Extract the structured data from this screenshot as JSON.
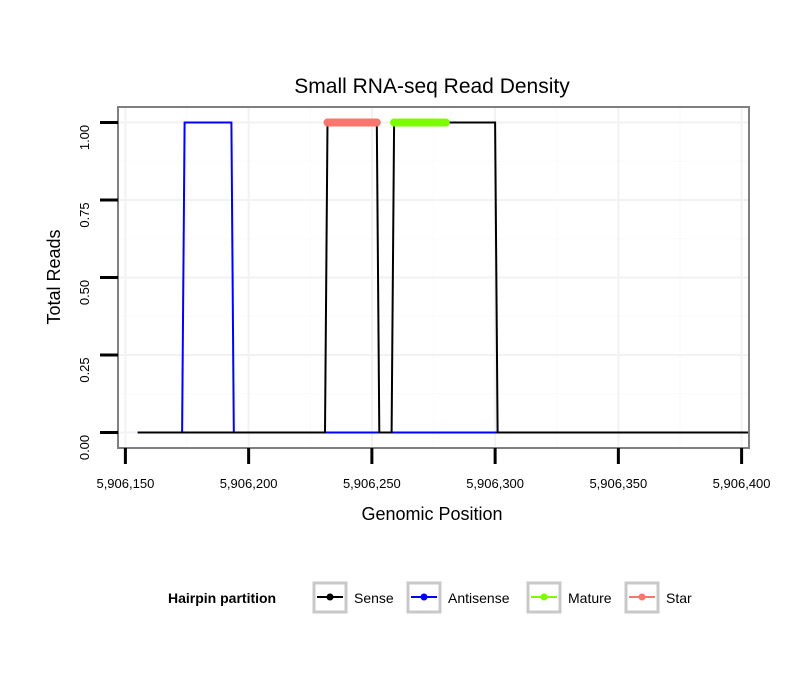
{
  "chart_data": {
    "type": "line",
    "title": "Small RNA-seq Read Density",
    "xlabel": "Genomic Position",
    "ylabel": "Total Reads",
    "xlim": [
      5906147,
      5906403
    ],
    "ylim": [
      -0.05,
      1.05
    ],
    "x_ticks": [
      5906150,
      5906200,
      5906250,
      5906300,
      5906350,
      5906400
    ],
    "x_tick_labels": [
      "5,906,150",
      "5,906,200",
      "5,906,250",
      "5,906,300",
      "5,906,350",
      "5,906,400"
    ],
    "y_ticks": [
      0,
      0.25,
      0.5,
      0.75,
      1
    ],
    "y_tick_labels": [
      "0.00",
      "0.25",
      "0.50",
      "0.75",
      "1.00"
    ],
    "grid": true,
    "legend": {
      "title": "Hairpin partition",
      "position": "bottom",
      "entries": [
        "Sense",
        "Antisense",
        "Mature",
        "Star"
      ]
    },
    "series": [
      {
        "name": "Antisense",
        "color": "#0000ff",
        "x": [
          5906155,
          5906173,
          5906174,
          5906193,
          5906194,
          5906301
        ],
        "y": [
          0,
          0,
          1,
          1,
          0,
          0
        ]
      },
      {
        "name": "Sense",
        "color": "#000000",
        "x": [
          5906155,
          5906231,
          5906232,
          5906252,
          5906253,
          5906258,
          5906259,
          5906300,
          5906301,
          5906403
        ],
        "y": [
          0,
          0,
          1,
          1,
          0,
          0,
          1,
          1,
          0,
          0
        ]
      },
      {
        "name": "Star",
        "color": "#f8766d",
        "x": [
          5906232,
          5906252
        ],
        "y": [
          1,
          1
        ]
      },
      {
        "name": "Mature",
        "color": "#7cfc00",
        "x": [
          5906259,
          5906280
        ],
        "y": [
          1,
          1
        ]
      }
    ]
  }
}
